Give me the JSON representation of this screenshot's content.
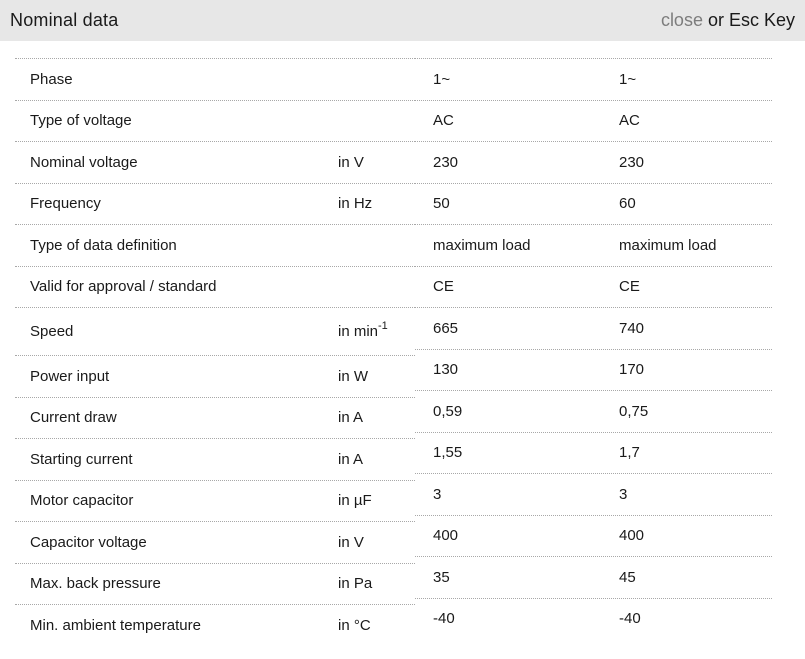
{
  "header": {
    "title": "Nominal data",
    "close_label": "close",
    "close_suffix": " or Esc Key"
  },
  "colors": {
    "header_background": "#e7e7e7",
    "text": "#1a1a1a",
    "close_link": "#7d7d7d",
    "row_divider": "#a8a8a8"
  },
  "table": {
    "rows": [
      {
        "label": "Phase",
        "unit": "",
        "unit_sup": "",
        "values": [
          "1~",
          "1~"
        ]
      },
      {
        "label": "Type of voltage",
        "unit": "",
        "unit_sup": "",
        "values": [
          "AC",
          "AC"
        ]
      },
      {
        "label": "Nominal voltage",
        "unit": "in V",
        "unit_sup": "",
        "values": [
          "230",
          "230"
        ]
      },
      {
        "label": "Frequency",
        "unit": "in Hz",
        "unit_sup": "",
        "values": [
          "50",
          "60"
        ]
      },
      {
        "label": "Type of data definition",
        "unit": "",
        "unit_sup": "",
        "values": [
          "maximum load",
          "maximum load"
        ]
      },
      {
        "label": "Valid for approval / standard",
        "unit": "",
        "unit_sup": "",
        "values": [
          "CE",
          "CE"
        ]
      },
      {
        "label": "Speed",
        "unit": "in min",
        "unit_sup": "-1",
        "values": [
          "665",
          "740"
        ]
      },
      {
        "label": "Power input",
        "unit": "in W",
        "unit_sup": "",
        "values": [
          "130",
          "170"
        ]
      },
      {
        "label": "Current draw",
        "unit": "in A",
        "unit_sup": "",
        "values": [
          "0,59",
          "0,75"
        ]
      },
      {
        "label": "Starting current",
        "unit": "in A",
        "unit_sup": "",
        "values": [
          "1,55",
          "1,7"
        ]
      },
      {
        "label": "Motor capacitor",
        "unit": "in µF",
        "unit_sup": "",
        "values": [
          "3",
          "3"
        ]
      },
      {
        "label": "Capacitor voltage",
        "unit": "in V",
        "unit_sup": "",
        "values": [
          "400",
          "400"
        ]
      },
      {
        "label": "Max. back pressure",
        "unit": "in Pa",
        "unit_sup": "",
        "values": [
          "35",
          "45"
        ]
      },
      {
        "label": "Min. ambient temperature",
        "unit": "in °C",
        "unit_sup": "",
        "values": [
          "-40",
          "-40"
        ]
      }
    ]
  }
}
